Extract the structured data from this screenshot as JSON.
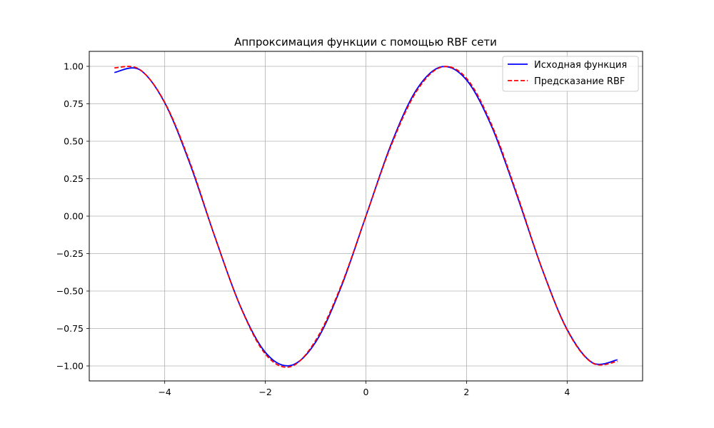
{
  "chart_data": {
    "type": "line",
    "title": "Аппроксимация функции с помощью RBF сети",
    "xlabel": "",
    "ylabel": "",
    "xlim": [
      -5.5,
      5.5
    ],
    "ylim": [
      -1.1,
      1.1
    ],
    "grid": true,
    "legend_position": "top-right",
    "x_ticks": [
      -4,
      -2,
      0,
      2,
      4
    ],
    "x_tick_labels": [
      "−4",
      "−2",
      "0",
      "2",
      "4"
    ],
    "y_ticks": [
      1.0,
      0.75,
      0.5,
      0.25,
      0.0,
      -0.25,
      -0.5,
      -0.75,
      -1.0
    ],
    "y_tick_labels": [
      "1.00",
      "0.75",
      "0.50",
      "0.25",
      "0.00",
      "−0.25",
      "−0.50",
      "−0.75",
      "−1.00"
    ],
    "series": [
      {
        "name": "Исходная функция",
        "color": "#0000ff",
        "style": "solid",
        "x": [
          -5.0,
          -4.5,
          -4.0,
          -3.5,
          -3.0,
          -2.5,
          -2.0,
          -1.5,
          -1.0,
          -0.5,
          0.0,
          0.5,
          1.0,
          1.5,
          2.0,
          2.5,
          3.0,
          3.5,
          4.0,
          4.5,
          5.0
        ],
        "y": [
          0.959,
          0.978,
          0.757,
          0.351,
          -0.141,
          -0.598,
          -0.909,
          -0.997,
          -0.841,
          -0.479,
          0.0,
          0.479,
          0.841,
          0.997,
          0.909,
          0.598,
          0.141,
          -0.351,
          -0.757,
          -0.978,
          -0.959
        ]
      },
      {
        "name": "Предсказание RBF",
        "color": "#ff0000",
        "style": "dashed",
        "x": [
          -5.0,
          -4.5,
          -4.0,
          -3.5,
          -3.0,
          -2.5,
          -2.0,
          -1.5,
          -1.0,
          -0.5,
          0.0,
          0.5,
          1.0,
          1.5,
          2.0,
          2.5,
          3.0,
          3.5,
          4.0,
          4.5,
          5.0
        ],
        "y": [
          0.99,
          0.98,
          0.76,
          0.36,
          -0.14,
          -0.6,
          -0.92,
          -1.005,
          -0.83,
          -0.47,
          0.0,
          0.47,
          0.83,
          0.995,
          0.92,
          0.61,
          0.15,
          -0.35,
          -0.76,
          -0.98,
          -0.97
        ]
      }
    ]
  }
}
